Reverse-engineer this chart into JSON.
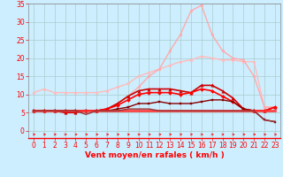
{
  "xlabel": "Vent moyen/en rafales ( km/h )",
  "x": [
    0,
    1,
    2,
    3,
    4,
    5,
    6,
    7,
    8,
    9,
    10,
    11,
    12,
    13,
    14,
    15,
    16,
    17,
    18,
    19,
    20,
    21,
    22,
    23
  ],
  "ylim": [
    -2,
    35
  ],
  "xlim": [
    -0.5,
    23.5
  ],
  "yticks": [
    0,
    5,
    10,
    15,
    20,
    25,
    30,
    35
  ],
  "xticks": [
    0,
    1,
    2,
    3,
    4,
    5,
    6,
    7,
    8,
    9,
    10,
    11,
    12,
    13,
    14,
    15,
    16,
    17,
    18,
    19,
    20,
    21,
    22,
    23
  ],
  "bg_color": "#cceeff",
  "grid_color": "#aacccc",
  "series": [
    {
      "label": "light_pink_upper",
      "values": [
        10.5,
        11.5,
        10.5,
        10.5,
        10.5,
        10.5,
        10.5,
        11.0,
        12.0,
        13.0,
        15.0,
        16.0,
        17.0,
        18.0,
        19.0,
        19.5,
        20.5,
        20.0,
        19.5,
        19.5,
        19.0,
        19.0,
        6.5,
        6.5
      ],
      "color": "#ffbbbb",
      "lw": 1.0,
      "marker": "o",
      "ms": 2.0
    },
    {
      "label": "light_pink_peak",
      "values": [
        5.5,
        5.5,
        5.5,
        5.5,
        5.5,
        5.5,
        5.5,
        6.0,
        7.5,
        9.5,
        12.0,
        15.0,
        17.0,
        22.0,
        26.5,
        33.0,
        34.5,
        26.5,
        22.0,
        20.0,
        19.5,
        15.0,
        6.5,
        6.5
      ],
      "color": "#ffaaaa",
      "lw": 1.0,
      "marker": "o",
      "ms": 2.0
    },
    {
      "label": "dark_red_triangle",
      "values": [
        5.5,
        5.5,
        5.5,
        5.0,
        5.0,
        5.5,
        5.5,
        6.0,
        7.5,
        9.5,
        11.0,
        11.5,
        11.5,
        11.5,
        11.0,
        10.5,
        12.5,
        12.5,
        11.0,
        9.0,
        6.0,
        5.5,
        5.5,
        6.5
      ],
      "color": "#cc0000",
      "lw": 1.2,
      "marker": "^",
      "ms": 2.5
    },
    {
      "label": "red_diamond",
      "values": [
        5.5,
        5.5,
        5.5,
        5.5,
        5.5,
        5.5,
        5.5,
        6.0,
        7.0,
        8.5,
        10.0,
        10.5,
        10.5,
        10.5,
        10.0,
        10.5,
        11.5,
        11.0,
        9.5,
        8.0,
        6.0,
        5.5,
        5.5,
        6.5
      ],
      "color": "#ff0000",
      "lw": 1.2,
      "marker": "D",
      "ms": 2.0
    },
    {
      "label": "dark_red_square",
      "values": [
        5.5,
        5.5,
        5.5,
        5.5,
        5.5,
        5.5,
        5.5,
        5.5,
        6.0,
        6.5,
        7.5,
        7.5,
        8.0,
        7.5,
        7.5,
        7.5,
        8.0,
        8.5,
        8.5,
        8.0,
        6.0,
        5.5,
        3.0,
        2.5
      ],
      "color": "#880000",
      "lw": 1.0,
      "marker": "s",
      "ms": 1.8
    },
    {
      "label": "flat_red",
      "values": [
        5.5,
        5.5,
        5.5,
        5.5,
        5.5,
        5.5,
        5.5,
        5.5,
        5.5,
        5.5,
        5.5,
        5.5,
        5.5,
        5.5,
        5.5,
        5.5,
        5.5,
        5.5,
        5.5,
        5.5,
        5.5,
        5.5,
        5.5,
        5.5
      ],
      "color": "#ff3333",
      "lw": 1.8,
      "marker": null,
      "ms": 0
    },
    {
      "label": "dark_lower",
      "values": [
        5.5,
        5.5,
        5.5,
        5.5,
        5.5,
        4.5,
        5.5,
        5.5,
        5.5,
        6.0,
        6.0,
        6.0,
        5.5,
        5.5,
        5.5,
        5.5,
        5.5,
        5.5,
        5.5,
        5.5,
        5.5,
        5.5,
        3.0,
        2.5
      ],
      "color": "#993333",
      "lw": 1.0,
      "marker": null,
      "ms": 0
    }
  ],
  "tick_fontsize": 5.5,
  "label_fontsize": 6.5,
  "arrow_angles": [
    0,
    0,
    0,
    0,
    0,
    0,
    0,
    0,
    0,
    0,
    0,
    0,
    0,
    15,
    15,
    15,
    -20,
    -20,
    -20,
    -20,
    0,
    0,
    0,
    0
  ]
}
